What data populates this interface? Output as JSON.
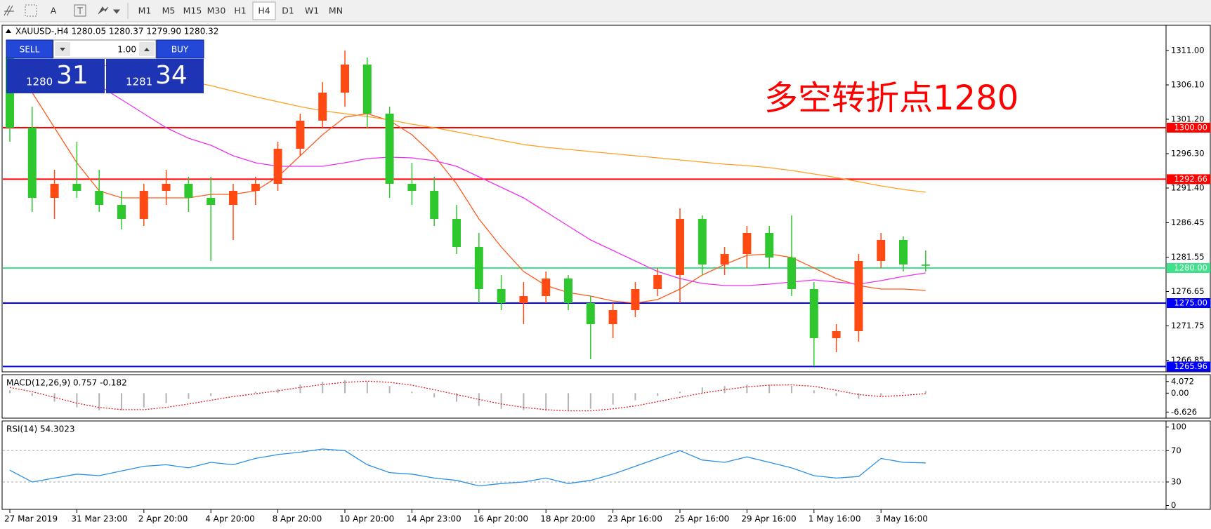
{
  "toolbar": {
    "font_button": "A",
    "timeframes": [
      "M1",
      "M5",
      "M15",
      "M30",
      "H1",
      "H4",
      "D1",
      "W1",
      "MN"
    ]
  },
  "trade_panel": {
    "sell": "SELL",
    "buy": "BUY",
    "lots": "1.00",
    "sell_big": "1280",
    "sell_small": "31",
    "buy_big": "1281",
    "buy_small": "34"
  },
  "chart_data": [
    {
      "type": "candlestick",
      "title": "XAUUSD-,H4  1280.05 1280.37 1279.90 1280.32",
      "annotation": "多空转折点1280",
      "categories": [
        "27 Mar 2019",
        null,
        null,
        "31 Mar 23:00",
        null,
        null,
        "2 Apr 20:00",
        null,
        null,
        "4 Apr 20:00",
        null,
        null,
        "8 Apr 20:00",
        null,
        null,
        "10 Apr 20:00",
        null,
        null,
        "14 Apr 23:00",
        null,
        null,
        "16 Apr 20:00",
        null,
        null,
        "18 Apr 20:00",
        null,
        null,
        "23 Apr 16:00",
        null,
        null,
        "25 Apr 16:00",
        null,
        null,
        "29 Apr 16:00",
        null,
        null,
        "1 May 16:00",
        null,
        null,
        "3 May 16:00",
        null,
        null
      ],
      "open": [
        1310,
        1300,
        1290,
        1292,
        1291,
        1289,
        1287,
        1291,
        1292,
        1290,
        1289,
        1291,
        1292,
        1297,
        1301,
        1305,
        1309,
        1302,
        1292,
        1291,
        1287,
        1283,
        1277,
        1275,
        1276,
        1278.5,
        1275,
        1272,
        1274,
        1277,
        1279,
        1287,
        1280.5,
        1282,
        1285,
        1281.5,
        1277,
        1270,
        1271,
        1281,
        1284,
        1280.5
      ],
      "high": [
        1312,
        1303,
        1294,
        1298,
        1294,
        1291,
        1292,
        1294,
        1293,
        1293,
        1292,
        1293,
        1298,
        1302,
        1306.5,
        1311,
        1310,
        1303,
        1295,
        1293,
        1289,
        1285,
        1279,
        1278,
        1279.5,
        1279,
        1276,
        1275,
        1278,
        1280,
        1288.5,
        1287.5,
        1283,
        1286,
        1286,
        1287.5,
        1278,
        1272,
        1282,
        1285,
        1284.5,
        1282.5
      ],
      "low": [
        1298,
        1288,
        1287,
        1290,
        1288,
        1285.5,
        1286,
        1289,
        1288,
        1281,
        1284,
        1289,
        1291,
        1296,
        1300,
        1303,
        1300,
        1290,
        1289,
        1286,
        1282,
        1275,
        1274,
        1272,
        1275,
        1274,
        1267,
        1270,
        1273,
        1276,
        1275,
        1279,
        1279,
        1280,
        1280,
        1276,
        1266,
        1268,
        1269.5,
        1280,
        1279.5,
        1279.5
      ],
      "close": [
        1300,
        1290,
        1292,
        1291,
        1289,
        1287,
        1291,
        1292,
        1290,
        1289,
        1291,
        1292,
        1297,
        1301,
        1305,
        1309,
        1302,
        1292,
        1291,
        1287,
        1283,
        1277,
        1275,
        1276,
        1278.5,
        1275,
        1272,
        1274,
        1277,
        1279,
        1287,
        1280.5,
        1282,
        1285,
        1281.5,
        1277,
        1270,
        1271,
        1281,
        1284,
        1280.5,
        1280.32
      ],
      "up_color": "#ff4a14",
      "down_color": "#2ec82e",
      "overlays": [
        {
          "color": "#ff5a1e",
          "values": [
            null,
            1305,
            1300,
            1295,
            1291,
            1290,
            1290,
            1290,
            1290,
            1290.5,
            1290.5,
            1291,
            1293,
            1296,
            1299,
            1301.5,
            1302,
            1301,
            1299,
            1296,
            1292,
            1287,
            1283,
            1279.5,
            1277.5,
            1276.5,
            1276,
            1275.3,
            1275,
            1275.5,
            1277,
            1279,
            1280.5,
            1281.8,
            1282,
            1281.5,
            1280,
            1278.5,
            1277.5,
            1277,
            1277,
            1276.8
          ]
        },
        {
          "color": "#ee30ee",
          "values": [
            null,
            null,
            null,
            null,
            1306,
            1304,
            1302,
            1300,
            1298.5,
            1297.5,
            1296,
            1295,
            1294.5,
            1294.5,
            1294.5,
            1295,
            1295.6,
            1295.8,
            1295.7,
            1295.3,
            1294.5,
            1293,
            1291.5,
            1290,
            1288,
            1286,
            1284,
            1282.5,
            1281,
            1279.5,
            1278.5,
            1277.8,
            1277.5,
            1277.5,
            1277.7,
            1278,
            1278.3,
            1278,
            1277.7,
            1278.2,
            1278.8,
            1279.3
          ]
        },
        {
          "color": "#ffa020",
          "values": [
            null,
            null,
            null,
            null,
            1309,
            1308.5,
            1307.8,
            1307.2,
            1306.6,
            1306,
            1305.2,
            1304.4,
            1303.7,
            1303,
            1302.4,
            1302,
            1301.6,
            1301.1,
            1300.5,
            1300,
            1299.4,
            1298.8,
            1298.2,
            1297.6,
            1297.2,
            1296.9,
            1296.6,
            1296.3,
            1296,
            1295.7,
            1295.4,
            1295.1,
            1294.8,
            1294.6,
            1294.3,
            1293.9,
            1293.4,
            1292.9,
            1292.3,
            1291.7,
            1291.2,
            1290.8
          ]
        }
      ],
      "levels": {
        "values": [
          1300,
          1292.66,
          1280,
          1275,
          1265.96
        ],
        "value_labels": [
          "1300.00",
          "1292.66",
          "1280.00",
          "1275.00",
          "1265.96"
        ],
        "colors": [
          "#ff0000",
          "#ff0000",
          "#3ee28a",
          "#0000ff",
          "#0000ff"
        ]
      },
      "ylim": [
        1265.2,
        1314.6
      ],
      "yticks": [
        {
          "value": 1311,
          "label": "1311.00"
        },
        {
          "value": 1306.1,
          "label": "1306.10"
        },
        {
          "value": 1301.2,
          "label": "1301.20"
        },
        {
          "value": 1296.3,
          "label": "1296.30"
        },
        {
          "value": 1291.4,
          "label": "1291.40"
        },
        1286.45,
        1281.55,
        1276.65,
        1271.75,
        1266.85
      ]
    },
    {
      "type": "macd",
      "title": "MACD(12,26,9) 0.757 -0.182",
      "histogram": {
        "color": "#b4b4b4",
        "values": [
          1,
          -1,
          -3,
          -5,
          -6,
          -6,
          -5,
          -3.5,
          -2,
          -1,
          0,
          0.5,
          1.5,
          3,
          4,
          4.5,
          4,
          2.5,
          0.5,
          -1.5,
          -3,
          -4.5,
          -5.5,
          -6,
          -6.2,
          -6,
          -5.5,
          -4,
          -2.5,
          -1,
          0.5,
          2,
          2.5,
          3,
          3,
          2.5,
          1,
          -1,
          -2,
          -1,
          0.3,
          0.757
        ]
      },
      "signal": {
        "color": "#e02020",
        "values": [
          2,
          0.5,
          -1.5,
          -3.5,
          -5,
          -5.8,
          -5.8,
          -5,
          -3.8,
          -2.5,
          -1.2,
          -0.2,
          0.8,
          2,
          3,
          3.8,
          4.2,
          3.8,
          2.8,
          1.2,
          -0.5,
          -2.2,
          -3.8,
          -5,
          -5.8,
          -6.2,
          -6.2,
          -5.5,
          -4.5,
          -3,
          -1.5,
          0,
          1.2,
          2.2,
          2.8,
          2.9,
          2.4,
          1,
          -0.5,
          -1.2,
          -0.8,
          -0.182
        ]
      },
      "ylim": [
        -8.77,
        6.48
      ],
      "yticks": [
        4.072,
        {
          "value": 0,
          "label": "0.00"
        },
        -6.626
      ]
    },
    {
      "type": "line",
      "title": "RSI(14) 54.3023",
      "color": "#2a8fe6",
      "values": [
        45,
        30,
        35,
        40,
        38,
        44,
        50,
        52,
        48,
        55,
        52,
        60,
        65,
        68,
        72,
        70,
        52,
        42,
        40,
        35,
        32,
        25,
        28,
        30,
        35,
        28,
        32,
        40,
        50,
        60,
        70,
        58,
        55,
        62,
        55,
        48,
        38,
        35,
        37,
        60,
        55,
        54.3023
      ],
      "ylim": [
        -4.9,
        107.8
      ],
      "yticks": [
        100,
        70,
        30,
        0
      ]
    }
  ]
}
